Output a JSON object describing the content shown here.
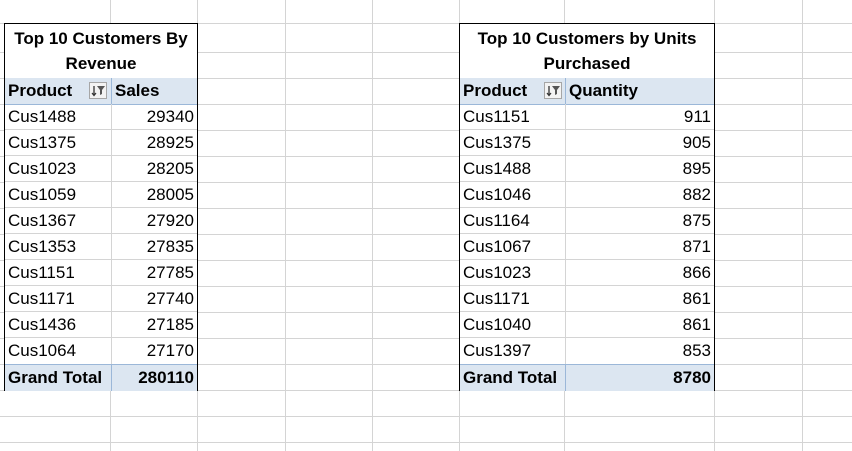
{
  "pivot_revenue": {
    "title_line1": "Top 10 Customers By",
    "title_line2": "Revenue",
    "col_label_header": "Product",
    "col_value_header": "Sales",
    "rows": [
      {
        "product": "Cus1488",
        "value": "29340"
      },
      {
        "product": "Cus1375",
        "value": "28925"
      },
      {
        "product": "Cus1023",
        "value": "28205"
      },
      {
        "product": "Cus1059",
        "value": "28005"
      },
      {
        "product": "Cus1367",
        "value": "27920"
      },
      {
        "product": "Cus1353",
        "value": "27835"
      },
      {
        "product": "Cus1151",
        "value": "27785"
      },
      {
        "product": "Cus1171",
        "value": "27740"
      },
      {
        "product": "Cus1436",
        "value": "27185"
      },
      {
        "product": "Cus1064",
        "value": "27170"
      }
    ],
    "total_label": "Grand Total",
    "total_value": "280110"
  },
  "pivot_units": {
    "title_line1": "Top 10 Customers by Units",
    "title_line2": "Purchased",
    "col_label_header": "Product",
    "col_value_header": "Quantity",
    "rows": [
      {
        "product": "Cus1151",
        "value": "911"
      },
      {
        "product": "Cus1375",
        "value": "905"
      },
      {
        "product": "Cus1488",
        "value": "895"
      },
      {
        "product": "Cus1046",
        "value": "882"
      },
      {
        "product": "Cus1164",
        "value": "875"
      },
      {
        "product": "Cus1067",
        "value": "871"
      },
      {
        "product": "Cus1023",
        "value": "866"
      },
      {
        "product": "Cus1171",
        "value": "861"
      },
      {
        "product": "Cus1040",
        "value": "861"
      },
      {
        "product": "Cus1397",
        "value": "853"
      }
    ],
    "total_label": "Grand Total",
    "total_value": "8780"
  },
  "icons": {
    "filter": "sort-filter-icon"
  },
  "colors": {
    "header_fill": "#dce6f1",
    "grid": "#d4d4d4",
    "border": "#000000"
  }
}
